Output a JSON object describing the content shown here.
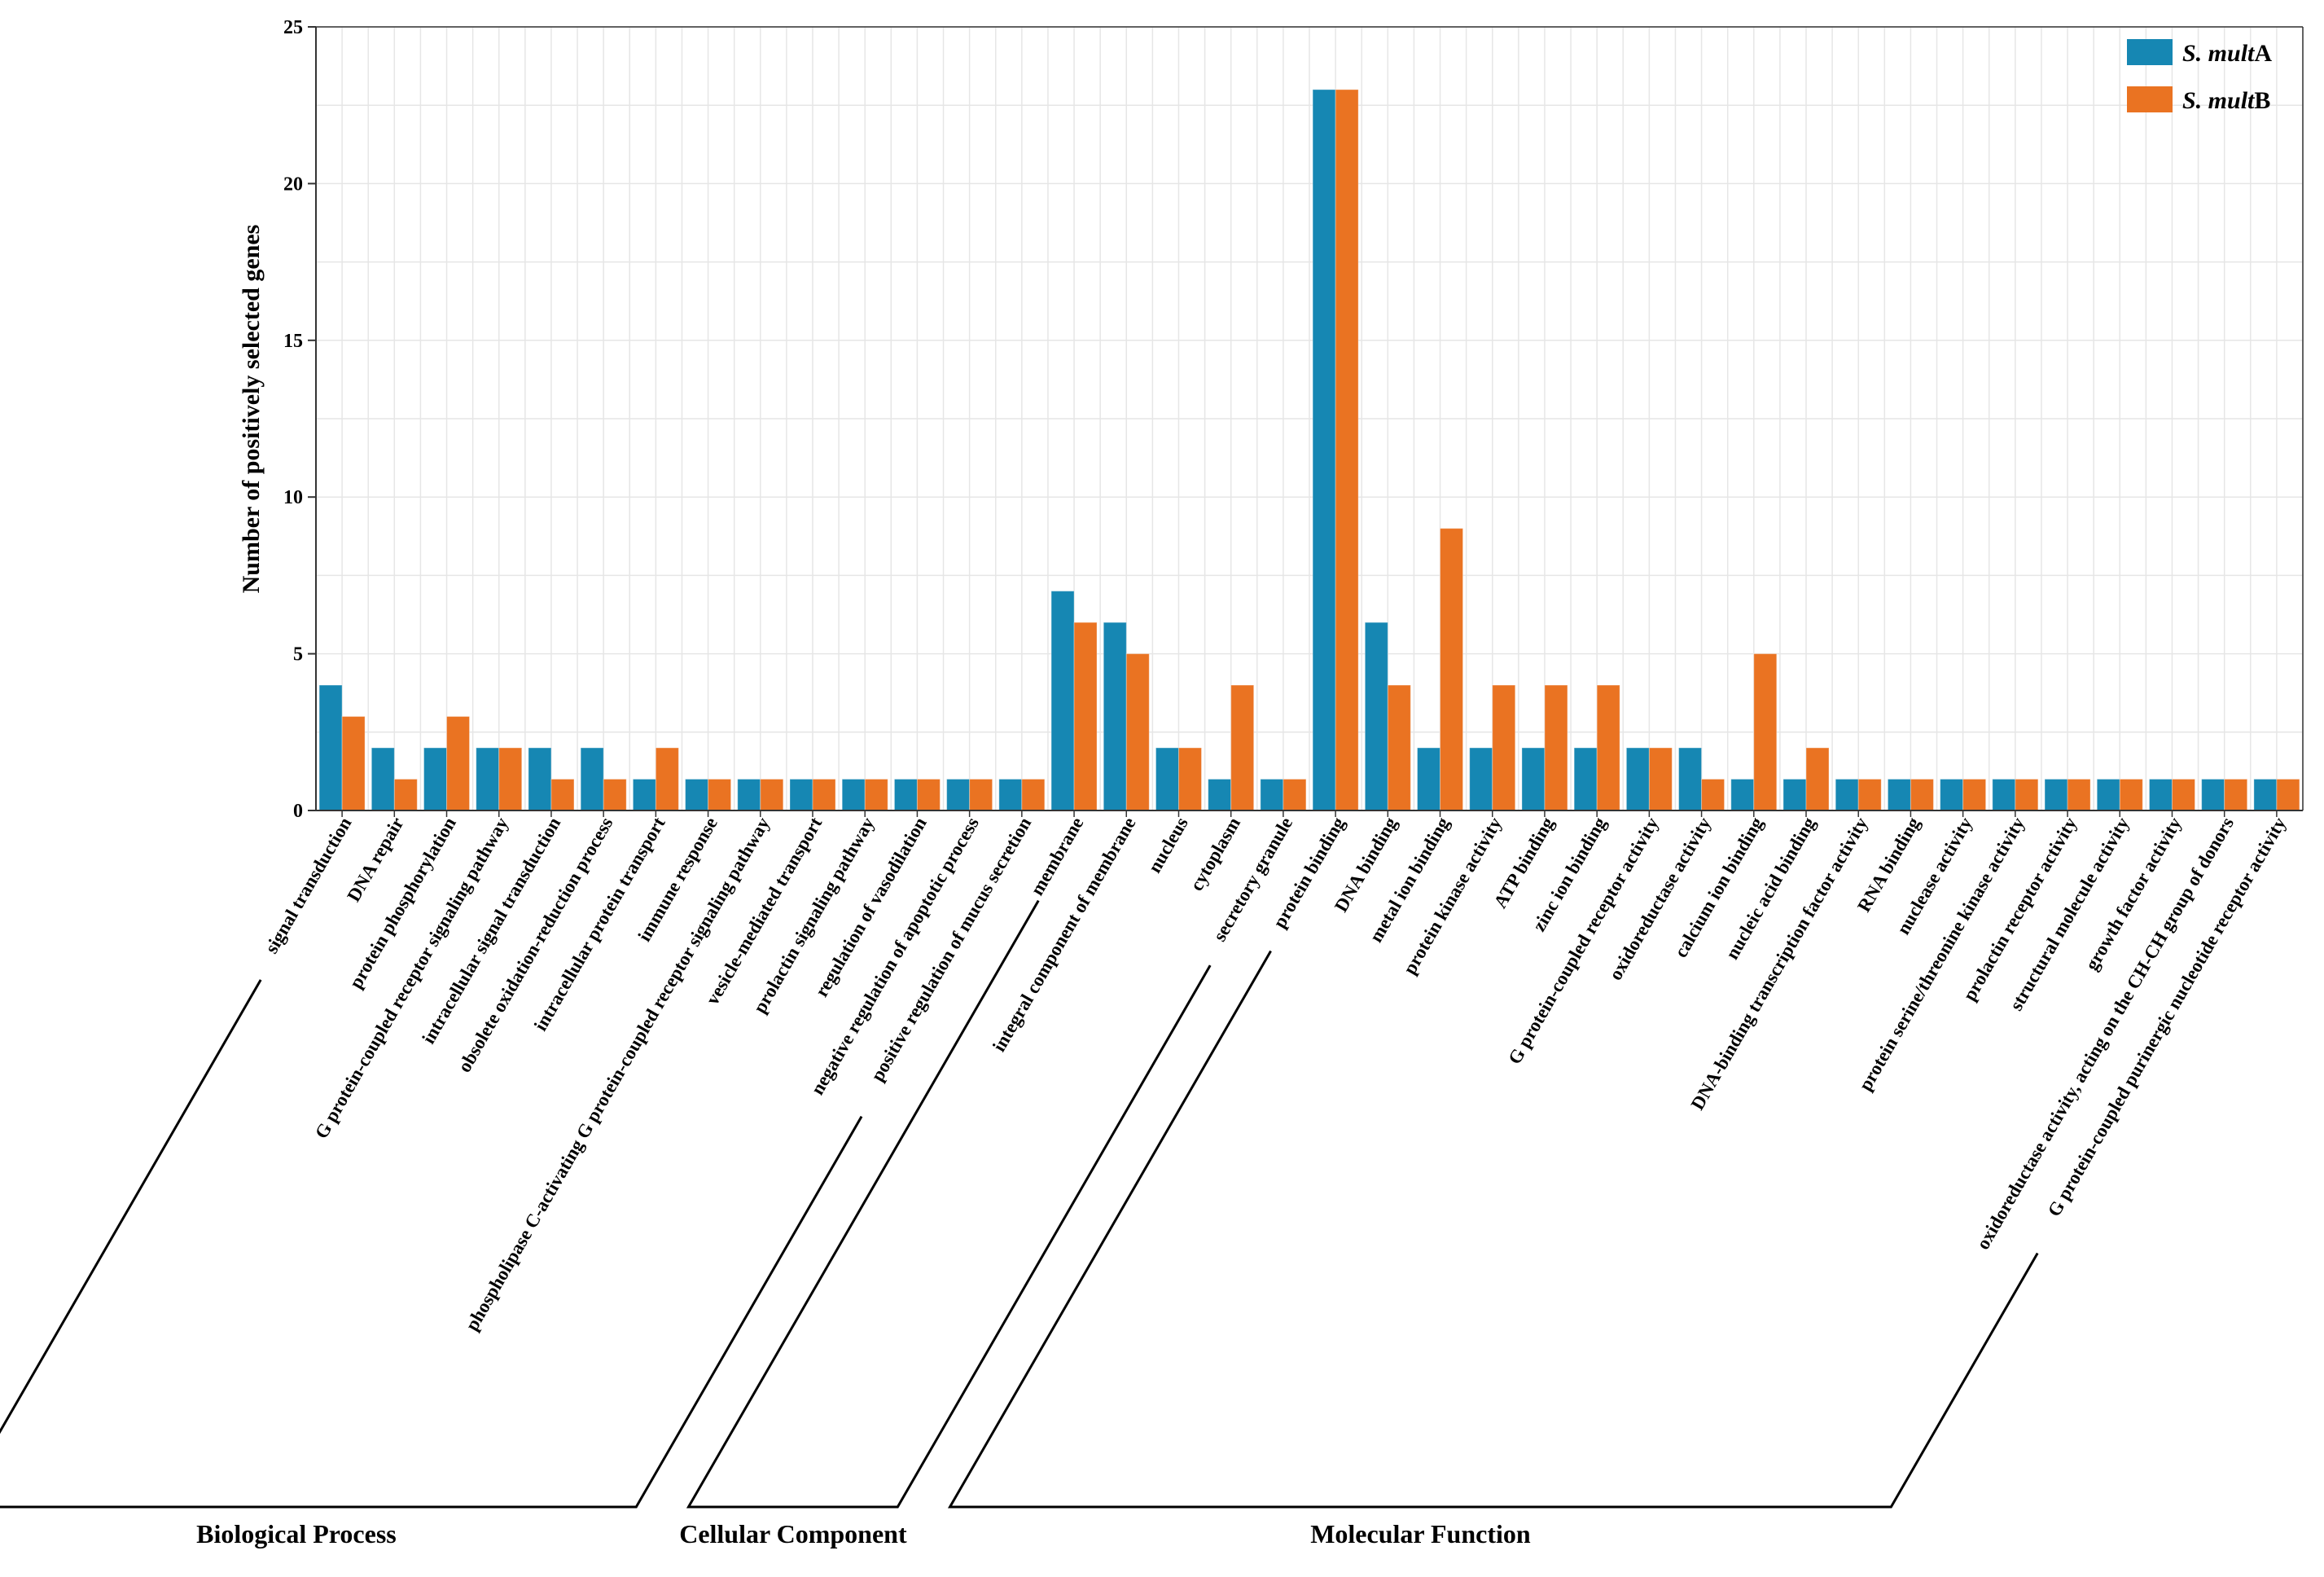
{
  "chart_data": {
    "type": "bar",
    "title": "",
    "xlabel": "",
    "ylabel": "Number of positively selected genes",
    "ylim": [
      0,
      25
    ],
    "yticks": [
      0,
      5,
      10,
      15,
      20,
      25
    ],
    "grid": true,
    "legend_position": "top-right",
    "categories": [
      "signal transduction",
      "DNA repair",
      "protein phosphorylation",
      "G protein-coupled receptor signaling pathway",
      "intracellular signal transduction",
      "obsolete oxidation-reduction process",
      "intracellular protein transport",
      "immune response",
      "phospholipase C-activating G protein-coupled receptor signaling pathway",
      "vesicle-mediated transport",
      "prolactin signaling pathway",
      "regulation of vasodilation",
      "negative regulation of apoptotic process",
      "positive regulation of mucus secretion",
      "membrane",
      "integral component of membrane",
      "nucleus",
      "cytoplasm",
      "secretory granule",
      "protein binding",
      "DNA binding",
      "metal ion binding",
      "protein kinase activity",
      "ATP binding",
      "zinc ion binding",
      "G protein-coupled receptor activity",
      "oxidoreductase activity",
      "calcium ion binding",
      "nucleic acid binding",
      "DNA-binding transcription factor activity",
      "RNA binding",
      "nuclease activity",
      "protein serine/threonine kinase activity",
      "prolactin receptor activity",
      "structural molecule activity",
      "growth factor activity",
      "oxidoreductase activity, acting on the CH-CH group of donors",
      "G protein-coupled purinergic nucleotide receptor activity"
    ],
    "series": [
      {
        "name": "S. multA",
        "name_italic": "S. mult",
        "name_suffix": "A",
        "color": "#1687b3",
        "values": [
          4,
          2,
          2,
          2,
          2,
          2,
          1,
          1,
          1,
          1,
          1,
          1,
          1,
          1,
          7,
          6,
          2,
          1,
          1,
          23,
          6,
          2,
          2,
          2,
          2,
          2,
          2,
          1,
          1,
          1,
          1,
          1,
          1,
          1,
          1,
          1,
          1,
          1
        ]
      },
      {
        "name": "S. multB",
        "name_italic": "S. mult",
        "name_suffix": "B",
        "color": "#ea7322",
        "values": [
          3,
          1,
          3,
          2,
          1,
          1,
          2,
          1,
          1,
          1,
          1,
          1,
          1,
          1,
          6,
          5,
          2,
          4,
          1,
          23,
          4,
          9,
          4,
          4,
          4,
          2,
          1,
          5,
          2,
          1,
          1,
          1,
          1,
          1,
          1,
          1,
          1,
          1
        ]
      }
    ],
    "groups": [
      {
        "label": "Biological Process",
        "start": 0,
        "end": 13
      },
      {
        "label": "Cellular Component",
        "start": 14,
        "end": 18
      },
      {
        "label": "Molecular Function",
        "start": 19,
        "end": 37
      }
    ]
  }
}
